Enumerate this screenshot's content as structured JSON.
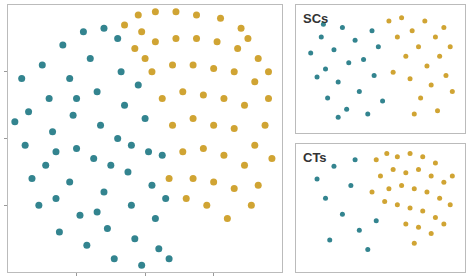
{
  "chart_data": [
    {
      "type": "scatter",
      "tick_labels": false,
      "grid": false,
      "marker": "circle",
      "xlim": [
        -40,
        40
      ],
      "ylim": [
        -40,
        40
      ],
      "xticks": [
        -20,
        0,
        20
      ],
      "yticks": [
        -20,
        0,
        20
      ],
      "series": [
        {
          "color": "#0f6f7b",
          "x": [
            -36,
            -34,
            -35,
            -33,
            -30,
            -28,
            -27,
            -29,
            -26,
            -24,
            -22,
            -21,
            -20,
            -22,
            -19,
            -17,
            -16,
            -14,
            -13,
            -15,
            -12,
            -11,
            -9,
            -8,
            -7,
            -6,
            -8,
            -5,
            -4,
            -3,
            -1,
            -2,
            0,
            1,
            2,
            3,
            4,
            -31,
            -25,
            -18,
            -12,
            -38,
            5,
            6,
            7,
            -10,
            -20,
            -26,
            -14,
            -4
          ],
          "y": [
            18,
            8,
            -2,
            -12,
            22,
            12,
            2,
            -8,
            -18,
            28,
            18,
            7,
            -3,
            -13,
            -23,
            -32,
            24,
            14,
            4,
            -6,
            -16,
            -27,
            -36,
            30,
            20,
            10,
            0,
            -10,
            -20,
            -30,
            -38,
            16,
            6,
            -4,
            -14,
            -24,
            -33,
            -20,
            -28,
            32,
            33,
            5,
            -5,
            -18,
            -36,
            -8,
            12,
            -4,
            -22,
            -2
          ]
        },
        {
          "color": "#c8940f",
          "x": [
            -6,
            -2,
            3,
            9,
            15,
            22,
            28,
            -3,
            3,
            9,
            15,
            21,
            27,
            33,
            2,
            8,
            14,
            20,
            26,
            32,
            36,
            5,
            11,
            17,
            23,
            29,
            35,
            8,
            14,
            20,
            26,
            32,
            11,
            17,
            23,
            29,
            14,
            20,
            26,
            31,
            18,
            24,
            33,
            7,
            0,
            12,
            36,
            -1,
            30,
            37
          ],
          "y": [
            34,
            37,
            38,
            38,
            37,
            36,
            33,
            27,
            29,
            30,
            30,
            29,
            27,
            24,
            20,
            22,
            22,
            21,
            20,
            17,
            12,
            12,
            14,
            13,
            12,
            10,
            4,
            4,
            6,
            4,
            3,
            -2,
            -4,
            -3,
            -5,
            -8,
            -12,
            -13,
            -15,
            -20,
            -20,
            -24,
            -14,
            -12,
            24,
            -18,
            20,
            32,
            30,
            -6
          ]
        }
      ]
    },
    {
      "type": "scatter",
      "title": "SCs",
      "tick_labels": false,
      "grid": false,
      "marker": "circle",
      "xlim": [
        -40,
        40
      ],
      "ylim": [
        -40,
        40
      ],
      "series": [
        {
          "color": "#0f6f7b",
          "x": [
            -33,
            -30,
            -28,
            -26,
            -25,
            -22,
            -20,
            -18,
            -16,
            -15,
            -12,
            -10,
            -8,
            -6,
            -4,
            -3,
            -1,
            1,
            -20,
            -27
          ],
          "y": [
            10,
            -5,
            20,
            0,
            -18,
            12,
            -8,
            26,
            -25,
            4,
            18,
            -14,
            6,
            -28,
            24,
            -4,
            14,
            -20,
            -30,
            28
          ]
        },
        {
          "color": "#c8940f",
          "x": [
            4,
            8,
            10,
            12,
            14,
            15,
            18,
            19,
            21,
            22,
            24,
            26,
            27,
            28,
            30,
            31,
            33,
            34,
            6,
            16
          ],
          "y": [
            30,
            20,
            32,
            8,
            -6,
            24,
            14,
            -18,
            30,
            2,
            -10,
            20,
            -26,
            8,
            26,
            -4,
            14,
            -14,
            -2,
            -28
          ]
        }
      ]
    },
    {
      "type": "scatter",
      "title": "CTs",
      "tick_labels": false,
      "grid": false,
      "marker": "circle",
      "xlim": [
        -40,
        40
      ],
      "ylim": [
        -40,
        40
      ],
      "series": [
        {
          "color": "#0f6f7b",
          "x": [
            -30,
            -26,
            -22,
            -18,
            -14,
            -10,
            -6,
            -2,
            -24,
            -12
          ],
          "y": [
            18,
            6,
            26,
            -4,
            14,
            -14,
            -26,
            -8,
            -20,
            30
          ]
        },
        {
          "color": "#c8940f",
          "x": [
            -2,
            3,
            8,
            14,
            20,
            26,
            0,
            6,
            12,
            18,
            24,
            30,
            4,
            10,
            16,
            22,
            28,
            33,
            8,
            14,
            20,
            26,
            12,
            18,
            24,
            -4,
            30,
            16,
            2,
            34
          ],
          "y": [
            30,
            34,
            32,
            34,
            32,
            28,
            20,
            24,
            22,
            24,
            20,
            16,
            12,
            14,
            12,
            10,
            6,
            2,
            2,
            0,
            -2,
            -6,
            -10,
            -12,
            -16,
            10,
            -10,
            -22,
            4,
            20
          ]
        }
      ]
    }
  ]
}
